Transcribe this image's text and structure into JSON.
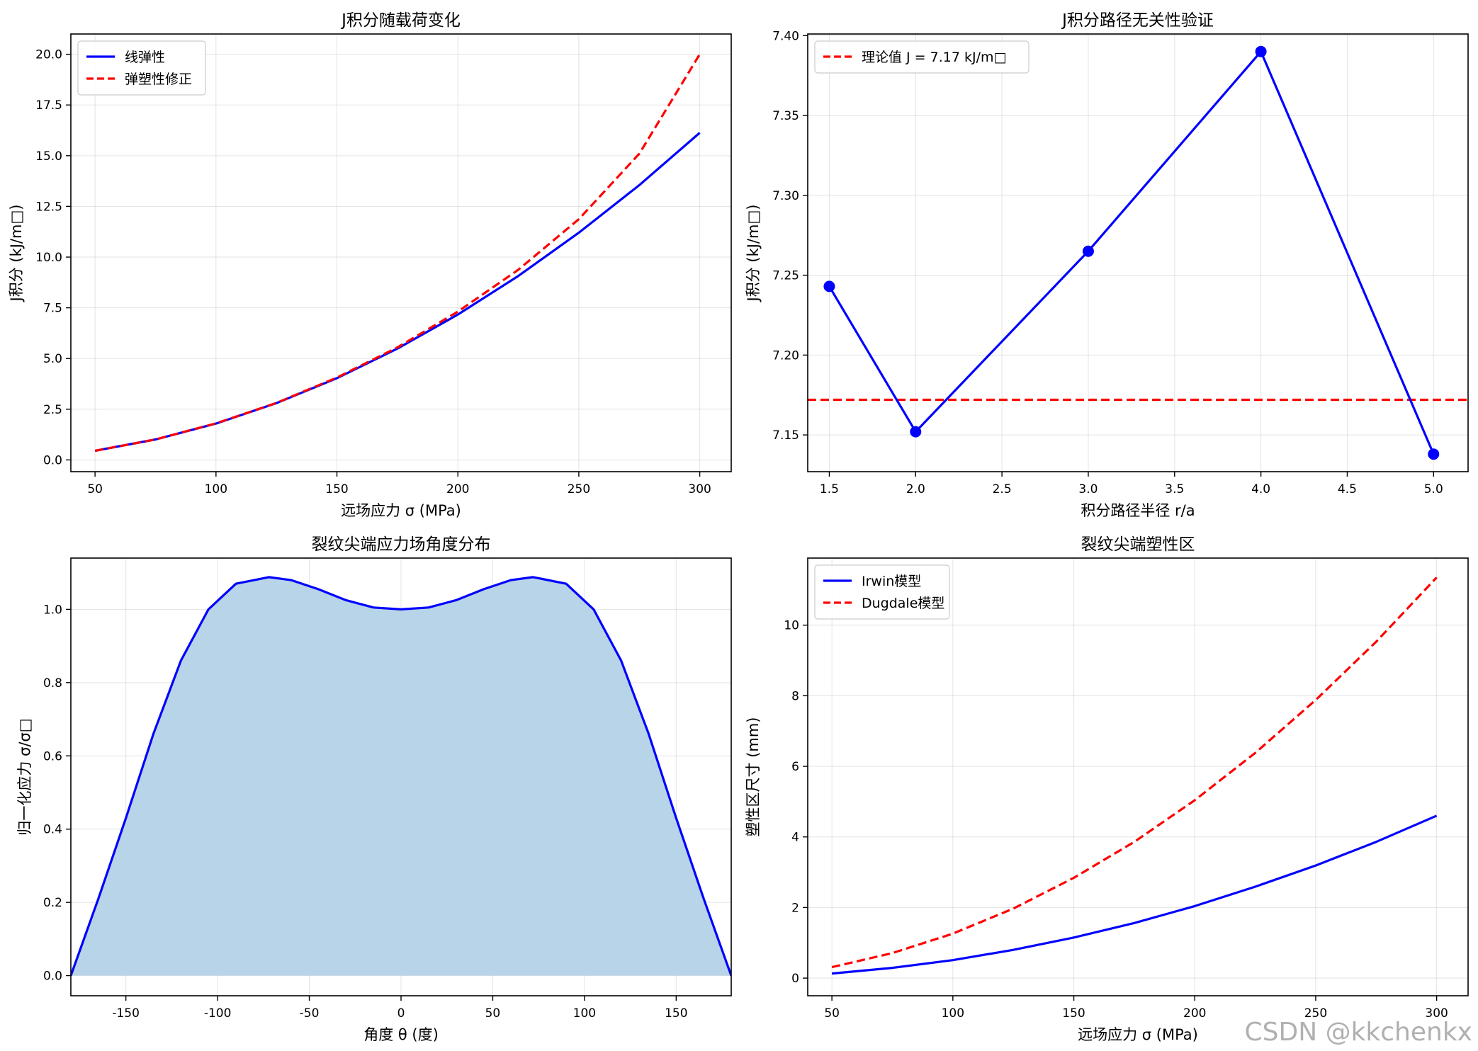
{
  "chart_data": [
    {
      "type": "line",
      "title": "J积分随载荷变化",
      "xlabel": "远场应力 σ (MPa)",
      "ylabel": "J积分 (kJ/m□)",
      "xlim": [
        40,
        313
      ],
      "ylim": [
        -0.58,
        21.0
      ],
      "xticks": [
        50,
        100,
        150,
        200,
        250,
        300
      ],
      "yticks": [
        0.0,
        2.5,
        5.0,
        7.5,
        10.0,
        12.5,
        15.0,
        17.5,
        20.0
      ],
      "ytick_labels": [
        "0.0",
        "2.5",
        "5.0",
        "7.5",
        "10.0",
        "12.5",
        "15.0",
        "17.5",
        "20.0"
      ],
      "grid": true,
      "legend_position": "upper-left",
      "x": [
        50,
        75,
        100,
        125,
        150,
        175,
        200,
        225,
        250,
        275,
        300
      ],
      "series": [
        {
          "name": "线弹性",
          "color": "#0000ff",
          "style": "solid",
          "values": [
            0.45,
            1.01,
            1.79,
            2.8,
            4.03,
            5.49,
            7.17,
            9.07,
            11.2,
            13.55,
            16.13
          ]
        },
        {
          "name": "弹塑性修正",
          "color": "#ff0000",
          "style": "dashed",
          "values": [
            0.45,
            1.01,
            1.8,
            2.81,
            4.06,
            5.55,
            7.31,
            9.38,
            11.87,
            15.1,
            20.0
          ]
        }
      ]
    },
    {
      "type": "line",
      "title": "J积分路径无关性验证",
      "xlabel": "积分路径半径 r/a",
      "ylabel": "J积分 (kJ/m□)",
      "xlim": [
        1.375,
        5.2
      ],
      "ylim": [
        7.127,
        7.401
      ],
      "xticks": [
        1.5,
        2.0,
        2.5,
        3.0,
        3.5,
        4.0,
        4.5,
        5.0
      ],
      "xtick_labels": [
        "1.5",
        "2.0",
        "2.5",
        "3.0",
        "3.5",
        "4.0",
        "4.5",
        "5.0"
      ],
      "yticks": [
        7.15,
        7.2,
        7.25,
        7.3,
        7.35,
        7.4
      ],
      "ytick_labels": [
        "7.15",
        "7.20",
        "7.25",
        "7.30",
        "7.35",
        "7.40"
      ],
      "grid": true,
      "legend_position": "upper-left",
      "x": [
        1.5,
        2.0,
        3.0,
        4.0,
        5.0
      ],
      "series": [
        {
          "color": "#0000ff",
          "style": "solid-markers",
          "values": [
            7.243,
            7.152,
            7.265,
            7.39,
            7.138
          ]
        }
      ],
      "reference_line": {
        "name": "理论值 J = 7.17 kJ/m□",
        "value": 7.172,
        "color": "#ff0000",
        "style": "dashed"
      }
    },
    {
      "type": "area",
      "title": "裂纹尖端应力场角度分布",
      "xlabel": "角度 θ (度)",
      "ylabel": "归一化应力 σ/σ□",
      "xlim": [
        -180,
        180
      ],
      "ylim": [
        -0.055,
        1.14
      ],
      "xticks": [
        -150,
        -100,
        -50,
        0,
        50,
        100,
        150
      ],
      "yticks": [
        0.0,
        0.2,
        0.4,
        0.6,
        0.8,
        1.0
      ],
      "ytick_labels": [
        "0.0",
        "0.2",
        "0.4",
        "0.6",
        "0.8",
        "1.0"
      ],
      "grid": true,
      "line_color": "#0000ff",
      "fill_color": "#b8d4e8",
      "x": [
        -180,
        -165,
        -150,
        -135,
        -120,
        -105,
        -90,
        -72,
        -60,
        -45,
        -30,
        -15,
        0,
        15,
        30,
        45,
        60,
        72,
        90,
        105,
        120,
        135,
        150,
        165,
        180
      ],
      "values": [
        0.0,
        0.21,
        0.43,
        0.66,
        0.86,
        1.0,
        1.07,
        1.088,
        1.08,
        1.055,
        1.025,
        1.005,
        1.0,
        1.005,
        1.025,
        1.055,
        1.08,
        1.088,
        1.07,
        1.0,
        0.86,
        0.66,
        0.43,
        0.21,
        0.0
      ]
    },
    {
      "type": "line",
      "title": "裂纹尖端塑性区",
      "xlabel": "远场应力 σ (MPa)",
      "ylabel": "塑性区尺寸 (mm)",
      "xlim": [
        40,
        313
      ],
      "ylim": [
        -0.5,
        11.9
      ],
      "xticks": [
        50,
        100,
        150,
        200,
        250,
        300
      ],
      "yticks": [
        0,
        2,
        4,
        6,
        8,
        10
      ],
      "grid": true,
      "legend_position": "upper-left",
      "x": [
        50,
        75,
        100,
        125,
        150,
        175,
        200,
        225,
        250,
        275,
        300
      ],
      "series": [
        {
          "name": "Irwin模型",
          "color": "#0000ff",
          "style": "solid",
          "values": [
            0.13,
            0.29,
            0.51,
            0.8,
            1.15,
            1.56,
            2.04,
            2.59,
            3.19,
            3.86,
            4.6
          ]
        },
        {
          "name": "Dugdale模型",
          "color": "#ff0000",
          "style": "dashed",
          "values": [
            0.31,
            0.71,
            1.26,
            1.97,
            2.84,
            3.86,
            5.04,
            6.38,
            7.88,
            9.53,
            11.35
          ]
        }
      ]
    }
  ],
  "watermark": "CSDN @kkchenkx"
}
